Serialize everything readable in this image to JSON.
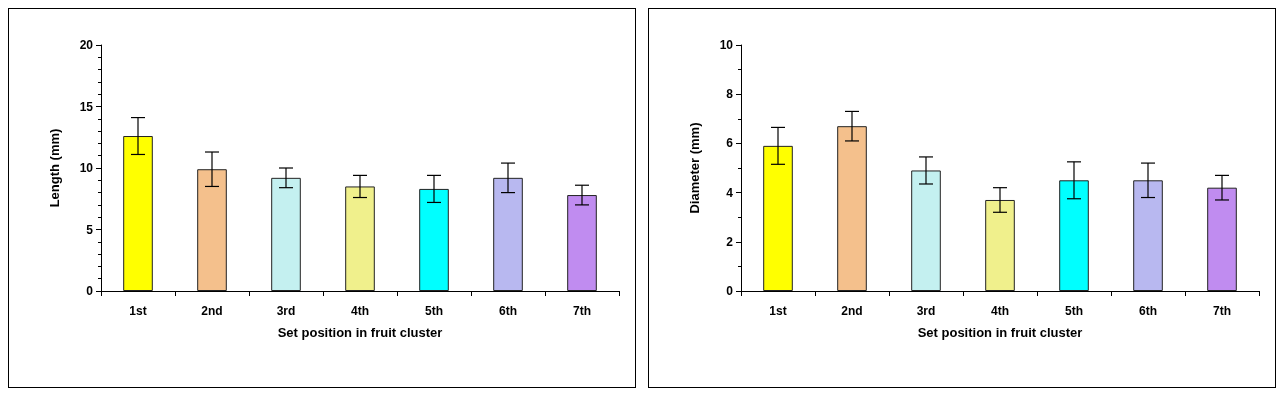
{
  "chart_data": [
    {
      "type": "bar",
      "xlabel": "Set position in fruit cluster",
      "ylabel": "Length (mm)",
      "categories": [
        "1st",
        "2nd",
        "3rd",
        "4th",
        "5th",
        "6th",
        "7th"
      ],
      "values": [
        12.6,
        9.9,
        9.2,
        8.5,
        8.3,
        9.2,
        7.8
      ],
      "errors": [
        1.5,
        1.4,
        0.8,
        0.9,
        1.1,
        1.2,
        0.8
      ],
      "colors": [
        "#ffff00",
        "#f4c08c",
        "#c4f0f0",
        "#f0f08c",
        "#00ffff",
        "#b8b8f0",
        "#c08cf0"
      ],
      "ylim": [
        0,
        20
      ],
      "yticks": [
        0,
        5,
        10,
        15,
        20
      ],
      "grid": false
    },
    {
      "type": "bar",
      "xlabel": "Set position in fruit cluster",
      "ylabel": "Diameter (mm)",
      "categories": [
        "1st",
        "2nd",
        "3rd",
        "4th",
        "5th",
        "6th",
        "7th"
      ],
      "values": [
        5.9,
        6.7,
        4.9,
        3.7,
        4.5,
        4.5,
        4.2
      ],
      "errors": [
        0.75,
        0.6,
        0.55,
        0.5,
        0.75,
        0.7,
        0.5
      ],
      "colors": [
        "#ffff00",
        "#f4c08c",
        "#c4f0f0",
        "#f0f08c",
        "#00ffff",
        "#b8b8f0",
        "#c08cf0"
      ],
      "ylim": [
        0,
        10
      ],
      "yticks": [
        0,
        2,
        4,
        6,
        8,
        10
      ],
      "grid": false
    }
  ]
}
